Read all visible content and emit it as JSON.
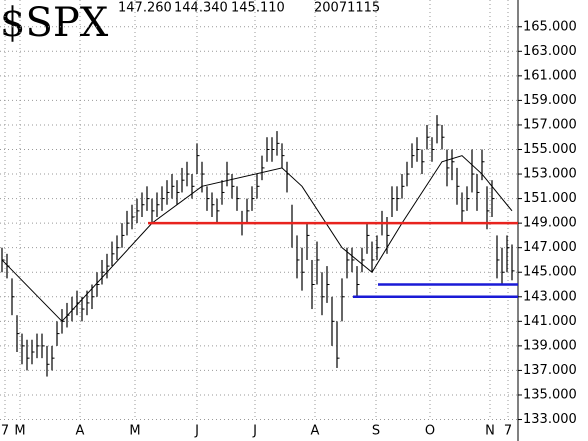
{
  "chart_data": {
    "type": "ohlc",
    "title": "$SPX",
    "header": [
      "147.260",
      "144.340",
      "145.110",
      "20071115"
    ],
    "xlim": [
      -0.4,
      103.2
    ],
    "xticks": [
      {
        "value": 0.6,
        "label": "7"
      },
      {
        "value": 3.6,
        "label": "M"
      },
      {
        "value": 15.6,
        "label": "A"
      },
      {
        "value": 26.6,
        "label": "M"
      },
      {
        "value": 39,
        "label": "J"
      },
      {
        "value": 50.6,
        "label": "J"
      },
      {
        "value": 62.6,
        "label": "A"
      },
      {
        "value": 74.8,
        "label": "S"
      },
      {
        "value": 85.6,
        "label": "O"
      },
      {
        "value": 97.6,
        "label": "N"
      },
      {
        "value": 101.2,
        "label": "7"
      }
    ],
    "ylim": [
      131.25,
      167.18
    ],
    "yticks": [
      {
        "value": 133,
        "label": "133.000"
      },
      {
        "value": 135,
        "label": "135.000"
      },
      {
        "value": 137,
        "label": "137.000"
      },
      {
        "value": 139,
        "label": "139.000"
      },
      {
        "value": 141,
        "label": "141.000"
      },
      {
        "value": 143,
        "label": "143.000"
      },
      {
        "value": 145,
        "label": "145.000"
      },
      {
        "value": 147,
        "label": "147.000"
      },
      {
        "value": 149,
        "label": "149.000"
      },
      {
        "value": 151,
        "label": "151.000"
      },
      {
        "value": 153,
        "label": "153.000"
      },
      {
        "value": 155,
        "label": "155.000"
      },
      {
        "value": 157,
        "label": "157.000"
      },
      {
        "value": 159,
        "label": "159.000"
      },
      {
        "value": 161,
        "label": "161.000"
      },
      {
        "value": 163,
        "label": "163.000"
      },
      {
        "value": 165,
        "label": "165.000"
      }
    ],
    "grid": true,
    "color": "#000000",
    "high": [
      147,
      146.5,
      144.5,
      141.5,
      140,
      139.5,
      139.5,
      140,
      140,
      139,
      139,
      141,
      142,
      142.5,
      143,
      143.5,
      143,
      143.5,
      144,
      145,
      146,
      146.5,
      147.5,
      148,
      149,
      150,
      150.5,
      151,
      151.5,
      152,
      151,
      151.5,
      152,
      152.5,
      153,
      152.5,
      153.5,
      154,
      153,
      155.5,
      154,
      152,
      151.5,
      151,
      152.5,
      154,
      153,
      152,
      150,
      151,
      152,
      153,
      154.5,
      156,
      156,
      156.5,
      155.5,
      154,
      150.5,
      148,
      147,
      149,
      146,
      147.5,
      145,
      145.5,
      143,
      141,
      144.5,
      147,
      147,
      145.5,
      147,
      149,
      147.5,
      148,
      150,
      149.5,
      152,
      152,
      153,
      154,
      155.5,
      156,
      155,
      157,
      156,
      157.8,
      157,
      155,
      155,
      153.5,
      151.5,
      152,
      155,
      153,
      155,
      152,
      152.5,
      148,
      147,
      148,
      147.26
    ],
    "low": [
      145,
      144.5,
      141.5,
      138.5,
      137.5,
      137,
      137.5,
      138,
      138,
      136.5,
      137,
      139,
      140,
      140.5,
      141,
      141.5,
      141,
      141.5,
      142,
      143,
      144,
      144.5,
      145.5,
      146,
      147,
      148,
      148.5,
      149,
      149.5,
      150,
      149,
      149.5,
      150,
      150.5,
      151,
      150.5,
      151.5,
      152,
      151,
      153,
      151.5,
      150,
      149.5,
      149,
      150.5,
      152,
      151,
      150,
      148,
      149,
      150,
      151,
      152.5,
      154,
      154,
      154.5,
      153.5,
      151.5,
      147,
      144.5,
      143.5,
      146,
      142,
      144,
      141.5,
      142.5,
      139,
      137.2,
      141,
      144.5,
      145,
      143,
      145,
      146.5,
      145,
      146,
      148,
      146.5,
      149.5,
      150,
      151,
      152,
      153.5,
      154,
      153,
      155,
      154,
      155.5,
      155,
      152,
      152.5,
      150.5,
      149,
      150,
      151.5,
      150,
      152.5,
      148.5,
      149.5,
      144.5,
      144,
      145,
      144.34
    ],
    "close": [
      146,
      145.5,
      143,
      140,
      139,
      138,
      138.5,
      139,
      139,
      137.5,
      138,
      140,
      141,
      141.5,
      142,
      142.5,
      142,
      142.5,
      143,
      144,
      145,
      145.5,
      146.5,
      147,
      148,
      149,
      149.5,
      150,
      150.5,
      151,
      150,
      150.5,
      151,
      151.5,
      152,
      151.5,
      152.5,
      153,
      152,
      154.5,
      153,
      151,
      150.5,
      150,
      151.5,
      153,
      152,
      151,
      149,
      150,
      151,
      152,
      153.5,
      155,
      155,
      155.5,
      154.5,
      153,
      149,
      146,
      145,
      148,
      144,
      146,
      143,
      144,
      141,
      138,
      143,
      146,
      146,
      144,
      146,
      148,
      146,
      147,
      149,
      148,
      151,
      151,
      152,
      153,
      154.5,
      155,
      154,
      156,
      155,
      157,
      156,
      153.5,
      154,
      152,
      150,
      151,
      153,
      151.5,
      154,
      150,
      151,
      146,
      145,
      147,
      145.11
    ],
    "moving_average": {
      "color": "#000000",
      "x": [
        0,
        12,
        30,
        40,
        56,
        60,
        68,
        74,
        80,
        88,
        92,
        96,
        102
      ],
      "values": [
        146,
        141,
        149,
        152,
        153.5,
        152,
        147,
        145,
        149,
        154,
        154.5,
        153,
        150
      ]
    },
    "levels": [
      {
        "color": "#e8231e",
        "value": 149,
        "x_start": 29.2
      },
      {
        "color": "#1a1ad6",
        "value": 144,
        "x_start": 75.2
      },
      {
        "color": "#1a1ad6",
        "value": 143,
        "x_start": 70.2
      }
    ]
  }
}
